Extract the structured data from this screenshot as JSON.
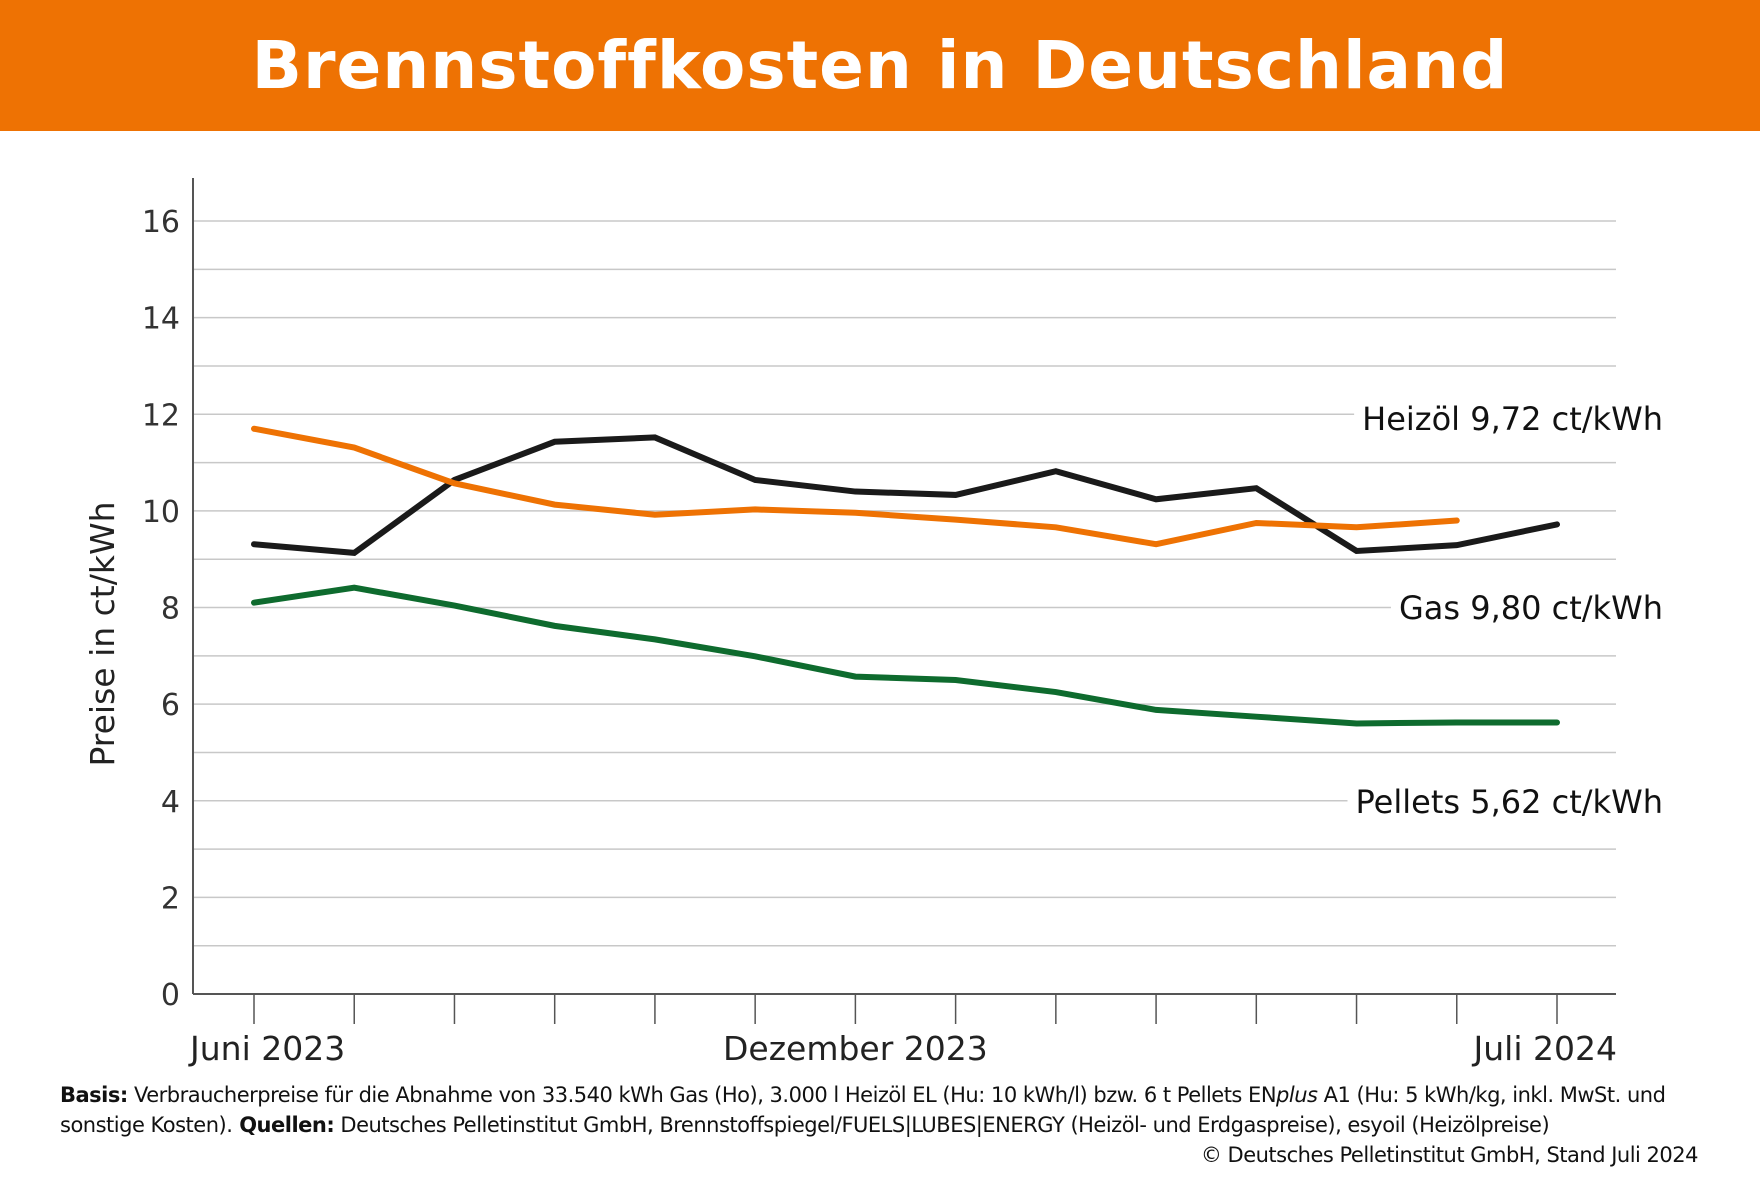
{
  "title": "Brennstoffkosten in Deutschland",
  "colors": {
    "header": "#EE7203",
    "heizoel": "#1a1a1a",
    "gas": "#EE7203",
    "pellets": "#0E6B2E"
  },
  "chart_data": {
    "type": "line",
    "title": "Brennstoffkosten in Deutschland",
    "ylabel": "Preise in ct/kWh",
    "xlabel": "",
    "ylim": [
      0,
      16
    ],
    "yticks": [
      0,
      2,
      4,
      6,
      8,
      10,
      12,
      14,
      16
    ],
    "x": [
      "2023-06",
      "2023-07",
      "2023-08",
      "2023-09",
      "2023-10",
      "2023-11",
      "2023-12",
      "2024-01",
      "2024-02",
      "2024-03",
      "2024-04",
      "2024-05",
      "2024-06",
      "2024-07"
    ],
    "xtick_labels": [
      {
        "index": 0,
        "label": "Juni 2023"
      },
      {
        "index": 6,
        "label": "Dezember 2023"
      },
      {
        "index": 13,
        "label": "Juli 2024"
      }
    ],
    "grid": true,
    "series": [
      {
        "name": "Heizöl",
        "end_label": "9,72 ct/kWh",
        "color": "#1a1a1a",
        "values": [
          9.31,
          9.13,
          10.64,
          11.43,
          11.52,
          10.64,
          10.4,
          10.33,
          10.82,
          10.24,
          10.47,
          9.17,
          9.29,
          9.72
        ]
      },
      {
        "name": "Gas",
        "end_label": "9,80 ct/kWh",
        "color": "#EE7203",
        "values": [
          11.7,
          11.31,
          10.57,
          10.13,
          9.92,
          10.03,
          9.96,
          9.82,
          9.66,
          9.31,
          9.75,
          9.66,
          9.8,
          null
        ]
      },
      {
        "name": "Pellets",
        "end_label": "5,62 ct/kWh",
        "color": "#0E6B2E",
        "values": [
          8.1,
          8.41,
          8.04,
          7.62,
          7.34,
          6.99,
          6.57,
          6.5,
          6.25,
          5.88,
          5.74,
          5.6,
          5.62,
          5.62
        ]
      }
    ]
  },
  "footer": {
    "basis_label": "Basis:",
    "basis_text": " Verbraucherpreise für die Abnahme von 33.540 kWh Gas (Ho), 3.000 l Heizöl EL (Hu: 10 kWh/l) bzw. 6 t Pellets EN",
    "basis_italic": "plus",
    "basis_text2": " A1 (Hu: 5 kWh/kg, inkl. MwSt. und sonstige Kosten).",
    "quellen_label": " Quellen:",
    "quellen_text": " Deutsches Pelletinstitut GmbH, Brennstoffspiegel/FUELS|LUBES|ENERGY (Heizöl- und Erdgaspreise), esyoil (Heizölpreise)",
    "copyright": "© Deutsches Pelletinstitut GmbH, Stand Juli 2024"
  }
}
